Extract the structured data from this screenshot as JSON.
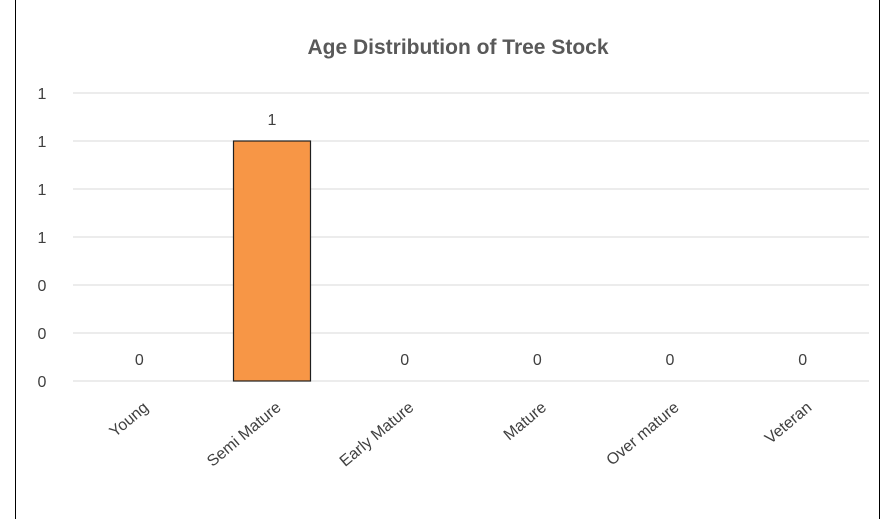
{
  "chart_data": {
    "type": "bar",
    "title": "Age Distribution of Tree Stock",
    "categories": [
      "Young",
      "Semi Mature",
      "Early Mature",
      "Mature",
      "Over mature",
      "Veteran"
    ],
    "values": [
      0,
      1,
      0,
      0,
      0,
      0
    ],
    "data_labels": [
      "0",
      "1",
      "0",
      "0",
      "0",
      "0"
    ],
    "y_tick_labels": [
      "0",
      "0",
      "0",
      "1",
      "1",
      "1",
      "1"
    ],
    "ylim": [
      0,
      1.2
    ],
    "xlabel": "",
    "ylabel": "",
    "grid": true,
    "legend": "none",
    "bar_color": "#F79646",
    "bar_edge_color": "#1F1F1F",
    "grid_color": "#D9D9D9"
  }
}
